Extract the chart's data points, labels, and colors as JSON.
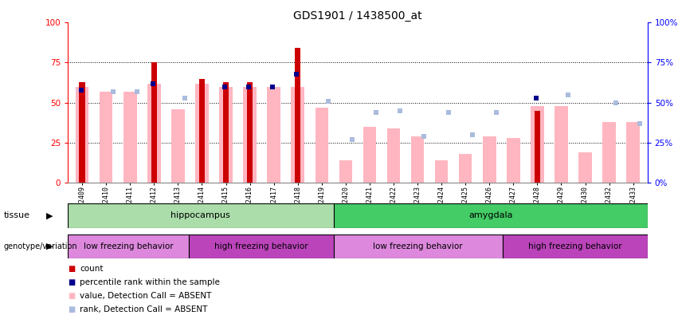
{
  "title": "GDS1901 / 1438500_at",
  "samples": [
    "GSM92409",
    "GSM92410",
    "GSM92411",
    "GSM92412",
    "GSM92413",
    "GSM92414",
    "GSM92415",
    "GSM92416",
    "GSM92417",
    "GSM92418",
    "GSM92419",
    "GSM92420",
    "GSM92421",
    "GSM92422",
    "GSM92423",
    "GSM92424",
    "GSM92425",
    "GSM92426",
    "GSM92427",
    "GSM92428",
    "GSM92429",
    "GSM92430",
    "GSM92432",
    "GSM92433"
  ],
  "count": [
    63,
    0,
    0,
    75,
    0,
    65,
    63,
    63,
    0,
    84,
    0,
    0,
    0,
    0,
    0,
    0,
    0,
    0,
    0,
    45,
    0,
    0,
    0,
    0
  ],
  "percentile_rank": [
    58,
    0,
    0,
    62,
    0,
    0,
    60,
    60,
    60,
    68,
    0,
    0,
    0,
    0,
    0,
    0,
    0,
    0,
    0,
    53,
    0,
    0,
    0,
    0
  ],
  "value_absent": [
    60,
    57,
    57,
    62,
    46,
    62,
    60,
    60,
    60,
    60,
    47,
    14,
    35,
    34,
    29,
    14,
    18,
    29,
    28,
    48,
    48,
    19,
    38,
    38
  ],
  "rank_absent": [
    0,
    57,
    57,
    0,
    53,
    0,
    0,
    0,
    0,
    0,
    51,
    27,
    44,
    45,
    29,
    44,
    30,
    44,
    0,
    0,
    55,
    0,
    50,
    37
  ],
  "tissue_groups": [
    {
      "label": "hippocampus",
      "start": 0,
      "end": 11,
      "color": "#aaddaa"
    },
    {
      "label": "amygdala",
      "start": 11,
      "end": 24,
      "color": "#44cc66"
    }
  ],
  "genotype_groups": [
    {
      "label": "low freezing behavior",
      "start": 0,
      "end": 5,
      "color": "#dd88dd"
    },
    {
      "label": "high freezing behavior",
      "start": 5,
      "end": 11,
      "color": "#bb44bb"
    },
    {
      "label": "low freezing behavior",
      "start": 11,
      "end": 18,
      "color": "#dd88dd"
    },
    {
      "label": "high freezing behavior",
      "start": 18,
      "end": 24,
      "color": "#bb44bb"
    }
  ],
  "count_color": "#CC0000",
  "percentile_color": "#00008B",
  "value_absent_color": "#FFB6C1",
  "rank_absent_color": "#AABBDD",
  "ylim": [
    0,
    100
  ],
  "grid_lines": [
    25,
    50,
    75
  ],
  "background_color": "#ffffff"
}
